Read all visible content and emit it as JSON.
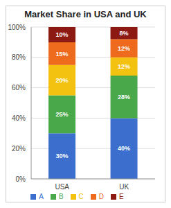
{
  "chart_data": {
    "type": "bar",
    "title": "Market Share in USA and UK",
    "categories": [
      "USA",
      "UK"
    ],
    "series": [
      {
        "name": "A",
        "color": "#3c6fcd",
        "values": [
          30,
          40
        ],
        "value_labels": [
          "30%",
          "40%"
        ]
      },
      {
        "name": "B",
        "color": "#48a84a",
        "values": [
          25,
          28
        ],
        "value_labels": [
          "25%",
          "28%"
        ]
      },
      {
        "name": "C",
        "color": "#f3c10f",
        "values": [
          20,
          12
        ],
        "value_labels": [
          "20%",
          "12%"
        ]
      },
      {
        "name": "D",
        "color": "#ee6a1d",
        "values": [
          15,
          12
        ],
        "value_labels": [
          "15%",
          "12%"
        ]
      },
      {
        "name": "E",
        "color": "#8c1a12",
        "values": [
          10,
          8
        ],
        "value_labels": [
          "10%",
          "8%"
        ]
      }
    ],
    "ylim": [
      0,
      100
    ],
    "yticks": [
      {
        "value": 0,
        "label": "0%"
      },
      {
        "value": 20,
        "label": "20%"
      },
      {
        "value": 40,
        "label": "40%"
      },
      {
        "value": 60,
        "label": "60%"
      },
      {
        "value": 80,
        "label": "80%"
      },
      {
        "value": 100,
        "label": "100%"
      }
    ],
    "grid": true,
    "stacked": true,
    "data_labels": true,
    "legend": "bottom"
  }
}
